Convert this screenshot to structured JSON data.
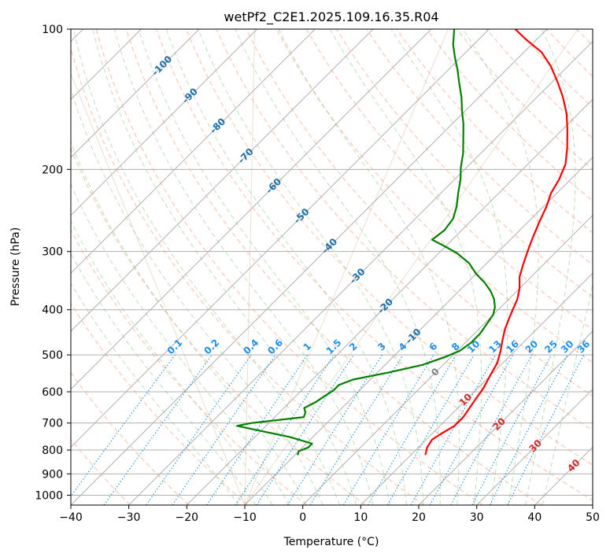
{
  "chart_data": {
    "type": "line",
    "title": "wetPf2_C2E1.2025.109.16.35.R04",
    "xlabel": "Temperature (°C)",
    "ylabel": "Pressure (hPa)",
    "xlim": [
      -40,
      50
    ],
    "ylim": [
      1050,
      100
    ],
    "y_scale": "log",
    "x_ticks": [
      -40,
      -30,
      -20,
      -10,
      0,
      10,
      20,
      30,
      40,
      50
    ],
    "x_tick_labels": [
      "−40",
      "−30",
      "−20",
      "−10",
      "0",
      "10",
      "20",
      "30",
      "40",
      "50"
    ],
    "y_ticks": [
      100,
      200,
      300,
      400,
      500,
      600,
      700,
      800,
      900,
      1000
    ],
    "grid": true,
    "skew": 45,
    "series": [
      {
        "color": "#ff0000",
        "points": [
          {
            "T": 12.5,
            "p": 820
          },
          {
            "T": 11.5,
            "p": 790
          },
          {
            "T": 11.0,
            "p": 760
          },
          {
            "T": 11.5,
            "p": 740
          },
          {
            "T": 12.5,
            "p": 710
          },
          {
            "T": 12.5,
            "p": 680
          },
          {
            "T": 12.0,
            "p": 650
          },
          {
            "T": 11.5,
            "p": 620
          },
          {
            "T": 11.0,
            "p": 590
          },
          {
            "T": 10.0,
            "p": 555
          },
          {
            "T": 9.0,
            "p": 520
          },
          {
            "T": 7.5,
            "p": 490
          },
          {
            "T": 6.0,
            "p": 465
          },
          {
            "T": 4.5,
            "p": 440
          },
          {
            "T": 3.5,
            "p": 420
          },
          {
            "T": 2.5,
            "p": 400
          },
          {
            "T": 1.5,
            "p": 380
          },
          {
            "T": 0.0,
            "p": 360
          },
          {
            "T": -2.0,
            "p": 340
          },
          {
            "T": -3.5,
            "p": 320
          },
          {
            "T": -5.0,
            "p": 300
          },
          {
            "T": -6.5,
            "p": 280
          },
          {
            "T": -8.0,
            "p": 260
          },
          {
            "T": -9.5,
            "p": 240
          },
          {
            "T": -11.0,
            "p": 225
          },
          {
            "T": -12.0,
            "p": 210
          },
          {
            "T": -13.5,
            "p": 195
          },
          {
            "T": -16.0,
            "p": 180
          },
          {
            "T": -19.0,
            "p": 165
          },
          {
            "T": -22.0,
            "p": 152
          },
          {
            "T": -25.5,
            "p": 140
          },
          {
            "T": -29.0,
            "p": 130
          },
          {
            "T": -33.0,
            "p": 120
          },
          {
            "T": -37.0,
            "p": 112
          },
          {
            "T": -42.0,
            "p": 105
          },
          {
            "T": -45.5,
            "p": 100
          }
        ]
      },
      {
        "color": "#008000",
        "points": [
          {
            "T": -9.5,
            "p": 820
          },
          {
            "T": -10.0,
            "p": 805
          },
          {
            "T": -9.0,
            "p": 790
          },
          {
            "T": -9.0,
            "p": 775
          },
          {
            "T": -14.0,
            "p": 750
          },
          {
            "T": -20.0,
            "p": 728
          },
          {
            "T": -25.0,
            "p": 710
          },
          {
            "T": -23.0,
            "p": 700
          },
          {
            "T": -15.0,
            "p": 680
          },
          {
            "T": -15.5,
            "p": 665
          },
          {
            "T": -16.5,
            "p": 650
          },
          {
            "T": -15.5,
            "p": 630
          },
          {
            "T": -15.0,
            "p": 612
          },
          {
            "T": -14.5,
            "p": 595
          },
          {
            "T": -14.5,
            "p": 580
          },
          {
            "T": -13.0,
            "p": 565
          },
          {
            "T": -8.0,
            "p": 545
          },
          {
            "T": -3.5,
            "p": 525
          },
          {
            "T": -1.0,
            "p": 505
          },
          {
            "T": 0.5,
            "p": 490
          },
          {
            "T": 1.0,
            "p": 470
          },
          {
            "T": 1.0,
            "p": 450
          },
          {
            "T": 0.5,
            "p": 430
          },
          {
            "T": 0.0,
            "p": 410
          },
          {
            "T": -1.0,
            "p": 395
          },
          {
            "T": -2.5,
            "p": 380
          },
          {
            "T": -4.5,
            "p": 365
          },
          {
            "T": -7.0,
            "p": 350
          },
          {
            "T": -10.0,
            "p": 335
          },
          {
            "T": -13.0,
            "p": 318
          },
          {
            "T": -17.0,
            "p": 302
          },
          {
            "T": -21.0,
            "p": 290
          },
          {
            "T": -23.5,
            "p": 283
          },
          {
            "T": -23.0,
            "p": 270
          },
          {
            "T": -23.5,
            "p": 255
          },
          {
            "T": -25.0,
            "p": 240
          },
          {
            "T": -27.0,
            "p": 225
          },
          {
            "T": -29.0,
            "p": 210
          },
          {
            "T": -31.0,
            "p": 198
          },
          {
            "T": -33.0,
            "p": 185
          },
          {
            "T": -35.5,
            "p": 172
          },
          {
            "T": -38.0,
            "p": 160
          },
          {
            "T": -40.5,
            "p": 150
          },
          {
            "T": -43.0,
            "p": 140
          },
          {
            "T": -46.0,
            "p": 130
          },
          {
            "T": -48.5,
            "p": 122
          },
          {
            "T": -51.0,
            "p": 115
          },
          {
            "T": -53.5,
            "p": 108
          },
          {
            "T": -56.0,
            "p": 100
          }
        ]
      }
    ],
    "dry_adiabat_labels": [
      "-100",
      "-90",
      "-80",
      "-70",
      "-60",
      "-50",
      "-40",
      "-30",
      "-20",
      "-10"
    ],
    "mixing_ratio_labels": [
      "0.1",
      "0.2",
      "0.4",
      "0.6",
      "1",
      "1.5",
      "2",
      "3",
      "4",
      "6",
      "8",
      "10",
      "13",
      "16",
      "20",
      "25",
      "30",
      "36"
    ],
    "moist_adiabat_labels": [
      "0",
      "10",
      "20",
      "30",
      "40"
    ],
    "colors": {
      "temperature": "#ff0000",
      "dewpoint": "#008000",
      "grid": "#b0b0b0",
      "dry_adiabat": "#ff9d7a",
      "moist_adiabat": "#7fbf7f",
      "mixing_ratio": "#1f8fe8",
      "dry_label": "#1f6fa8",
      "moist_label": "#d62728"
    }
  }
}
